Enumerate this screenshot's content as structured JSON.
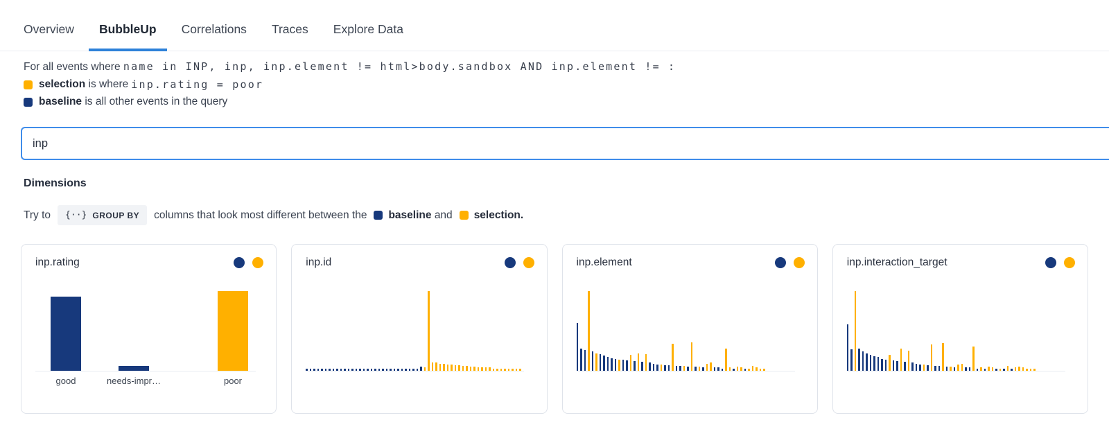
{
  "tabs": {
    "items": [
      {
        "label": "Overview",
        "active": false
      },
      {
        "label": "BubbleUp",
        "active": true
      },
      {
        "label": "Correlations",
        "active": false
      },
      {
        "label": "Traces",
        "active": false
      },
      {
        "label": "Explore Data",
        "active": false
      }
    ]
  },
  "query": {
    "prefix": "For all events where",
    "expression": "name in INP, inp, inp.element != html>body.sandbox AND inp.element != :",
    "selection_label": "selection",
    "selection_mid": "is where",
    "selection_expr": "inp.rating = poor",
    "baseline_label": "baseline",
    "baseline_rest": "is all other events in the query"
  },
  "search": {
    "value": "inp",
    "placeholder": ""
  },
  "dimensions": {
    "heading": "Dimensions",
    "hint_prefix": "Try to",
    "group_by_icon": "{··}",
    "group_by_label": "GROUP BY",
    "hint_mid": "columns that look most different between the",
    "baseline_word": "baseline",
    "hint_and": "and",
    "selection_word": "selection",
    "hint_period": "."
  },
  "colors": {
    "baseline": "#17397C",
    "selection": "#FFB000",
    "tab_underline": "#2E81D9",
    "input_border": "#3F8CEA"
  },
  "chart_data": [
    {
      "type": "bar",
      "title": "inp.rating",
      "legend": [
        "baseline (navy)",
        "selection (orange)"
      ],
      "note": "heights are relative fractions of tallest bar; y-axis unlabeled",
      "categories": [
        "good",
        "needs-impr…",
        "poor"
      ],
      "bars": [
        {
          "label": "good",
          "series": "baseline",
          "value": 0.93
        },
        {
          "label": "needs-impr…",
          "series": "baseline",
          "value": 0.06
        },
        {
          "label": "poor",
          "series": "selection",
          "value": 1.0
        }
      ]
    },
    {
      "type": "bar",
      "title": "inp.id",
      "legend": [
        "baseline (navy)",
        "selection (orange)"
      ],
      "note": "dense distribution, x categories unlabeled; heights relative; b=baseline o=selection",
      "bars": [
        [
          0.03,
          "b"
        ],
        [
          0.03,
          "b"
        ],
        [
          0.03,
          "b"
        ],
        [
          0.03,
          "b"
        ],
        [
          0.03,
          "b"
        ],
        [
          0.03,
          "b"
        ],
        [
          0.03,
          "b"
        ],
        [
          0.03,
          "b"
        ],
        [
          0.03,
          "b"
        ],
        [
          0.03,
          "b"
        ],
        [
          0.03,
          "b"
        ],
        [
          0.03,
          "b"
        ],
        [
          0.03,
          "b"
        ],
        [
          0.03,
          "b"
        ],
        [
          0.03,
          "b"
        ],
        [
          0.03,
          "b"
        ],
        [
          0.03,
          "b"
        ],
        [
          0.03,
          "b"
        ],
        [
          0.03,
          "b"
        ],
        [
          0.03,
          "b"
        ],
        [
          0.03,
          "b"
        ],
        [
          0.03,
          "b"
        ],
        [
          0.03,
          "b"
        ],
        [
          0.03,
          "b"
        ],
        [
          0.03,
          "b"
        ],
        [
          0.03,
          "b"
        ],
        [
          0.03,
          "b"
        ],
        [
          0.03,
          "b"
        ],
        [
          0.03,
          "b"
        ],
        [
          0.03,
          "b"
        ],
        [
          0.05,
          "b"
        ],
        [
          0.04,
          "o"
        ],
        [
          1.0,
          "o"
        ],
        [
          0.1,
          "o"
        ],
        [
          0.1,
          "o"
        ],
        [
          0.09,
          "o"
        ],
        [
          0.09,
          "o"
        ],
        [
          0.08,
          "o"
        ],
        [
          0.08,
          "o"
        ],
        [
          0.07,
          "o"
        ],
        [
          0.07,
          "o"
        ],
        [
          0.06,
          "o"
        ],
        [
          0.06,
          "o"
        ],
        [
          0.05,
          "o"
        ],
        [
          0.05,
          "o"
        ],
        [
          0.04,
          "o"
        ],
        [
          0.04,
          "o"
        ],
        [
          0.04,
          "o"
        ],
        [
          0.04,
          "o"
        ],
        [
          0.03,
          "o"
        ],
        [
          0.03,
          "o"
        ],
        [
          0.03,
          "o"
        ],
        [
          0.03,
          "o"
        ],
        [
          0.03,
          "o"
        ],
        [
          0.03,
          "o"
        ],
        [
          0.03,
          "o"
        ],
        [
          0.03,
          "o"
        ]
      ]
    },
    {
      "type": "bar",
      "title": "inp.element",
      "legend": [
        "baseline (navy)",
        "selection (orange)"
      ],
      "note": "dense distribution, x categories unlabeled; heights relative; b=baseline o=selection",
      "bars": [
        [
          0.6,
          "b"
        ],
        [
          0.28,
          "b"
        ],
        [
          0.26,
          "b"
        ],
        [
          1.0,
          "o"
        ],
        [
          0.24,
          "b"
        ],
        [
          0.22,
          "o"
        ],
        [
          0.21,
          "b"
        ],
        [
          0.19,
          "b"
        ],
        [
          0.17,
          "b"
        ],
        [
          0.16,
          "b"
        ],
        [
          0.15,
          "b"
        ],
        [
          0.14,
          "o"
        ],
        [
          0.14,
          "b"
        ],
        [
          0.13,
          "b"
        ],
        [
          0.2,
          "o"
        ],
        [
          0.12,
          "b"
        ],
        [
          0.22,
          "o"
        ],
        [
          0.11,
          "b"
        ],
        [
          0.21,
          "o"
        ],
        [
          0.1,
          "b"
        ],
        [
          0.09,
          "b"
        ],
        [
          0.08,
          "b"
        ],
        [
          0.08,
          "o"
        ],
        [
          0.07,
          "b"
        ],
        [
          0.07,
          "b"
        ],
        [
          0.34,
          "o"
        ],
        [
          0.06,
          "b"
        ],
        [
          0.06,
          "b"
        ],
        [
          0.06,
          "o"
        ],
        [
          0.05,
          "b"
        ],
        [
          0.36,
          "o"
        ],
        [
          0.05,
          "b"
        ],
        [
          0.05,
          "o"
        ],
        [
          0.04,
          "b"
        ],
        [
          0.09,
          "o"
        ],
        [
          0.1,
          "o"
        ],
        [
          0.04,
          "b"
        ],
        [
          0.04,
          "b"
        ],
        [
          0.03,
          "b"
        ],
        [
          0.28,
          "o"
        ],
        [
          0.04,
          "o"
        ],
        [
          0.03,
          "b"
        ],
        [
          0.05,
          "o"
        ],
        [
          0.04,
          "o"
        ],
        [
          0.03,
          "b"
        ],
        [
          0.03,
          "o"
        ],
        [
          0.06,
          "o"
        ],
        [
          0.04,
          "o"
        ],
        [
          0.03,
          "o"
        ],
        [
          0.03,
          "o"
        ]
      ]
    },
    {
      "type": "bar",
      "title": "inp.interaction_target",
      "legend": [
        "baseline (navy)",
        "selection (orange)"
      ],
      "note": "dense distribution, x categories unlabeled; heights relative; b=baseline o=selection",
      "bars": [
        [
          0.58,
          "b"
        ],
        [
          0.27,
          "b"
        ],
        [
          1.0,
          "o"
        ],
        [
          0.28,
          "b"
        ],
        [
          0.24,
          "b"
        ],
        [
          0.22,
          "b"
        ],
        [
          0.2,
          "b"
        ],
        [
          0.18,
          "b"
        ],
        [
          0.17,
          "b"
        ],
        [
          0.15,
          "b"
        ],
        [
          0.14,
          "b"
        ],
        [
          0.2,
          "o"
        ],
        [
          0.13,
          "b"
        ],
        [
          0.12,
          "b"
        ],
        [
          0.28,
          "o"
        ],
        [
          0.11,
          "b"
        ],
        [
          0.25,
          "o"
        ],
        [
          0.1,
          "b"
        ],
        [
          0.09,
          "b"
        ],
        [
          0.08,
          "b"
        ],
        [
          0.08,
          "o"
        ],
        [
          0.07,
          "b"
        ],
        [
          0.33,
          "o"
        ],
        [
          0.06,
          "b"
        ],
        [
          0.06,
          "b"
        ],
        [
          0.35,
          "o"
        ],
        [
          0.05,
          "b"
        ],
        [
          0.05,
          "o"
        ],
        [
          0.04,
          "b"
        ],
        [
          0.08,
          "o"
        ],
        [
          0.09,
          "o"
        ],
        [
          0.04,
          "b"
        ],
        [
          0.04,
          "b"
        ],
        [
          0.3,
          "o"
        ],
        [
          0.03,
          "b"
        ],
        [
          0.04,
          "o"
        ],
        [
          0.03,
          "b"
        ],
        [
          0.05,
          "o"
        ],
        [
          0.04,
          "o"
        ],
        [
          0.03,
          "b"
        ],
        [
          0.03,
          "o"
        ],
        [
          0.03,
          "b"
        ],
        [
          0.06,
          "o"
        ],
        [
          0.03,
          "b"
        ],
        [
          0.04,
          "o"
        ],
        [
          0.05,
          "o"
        ],
        [
          0.04,
          "o"
        ],
        [
          0.03,
          "o"
        ],
        [
          0.03,
          "o"
        ],
        [
          0.03,
          "o"
        ]
      ]
    }
  ]
}
